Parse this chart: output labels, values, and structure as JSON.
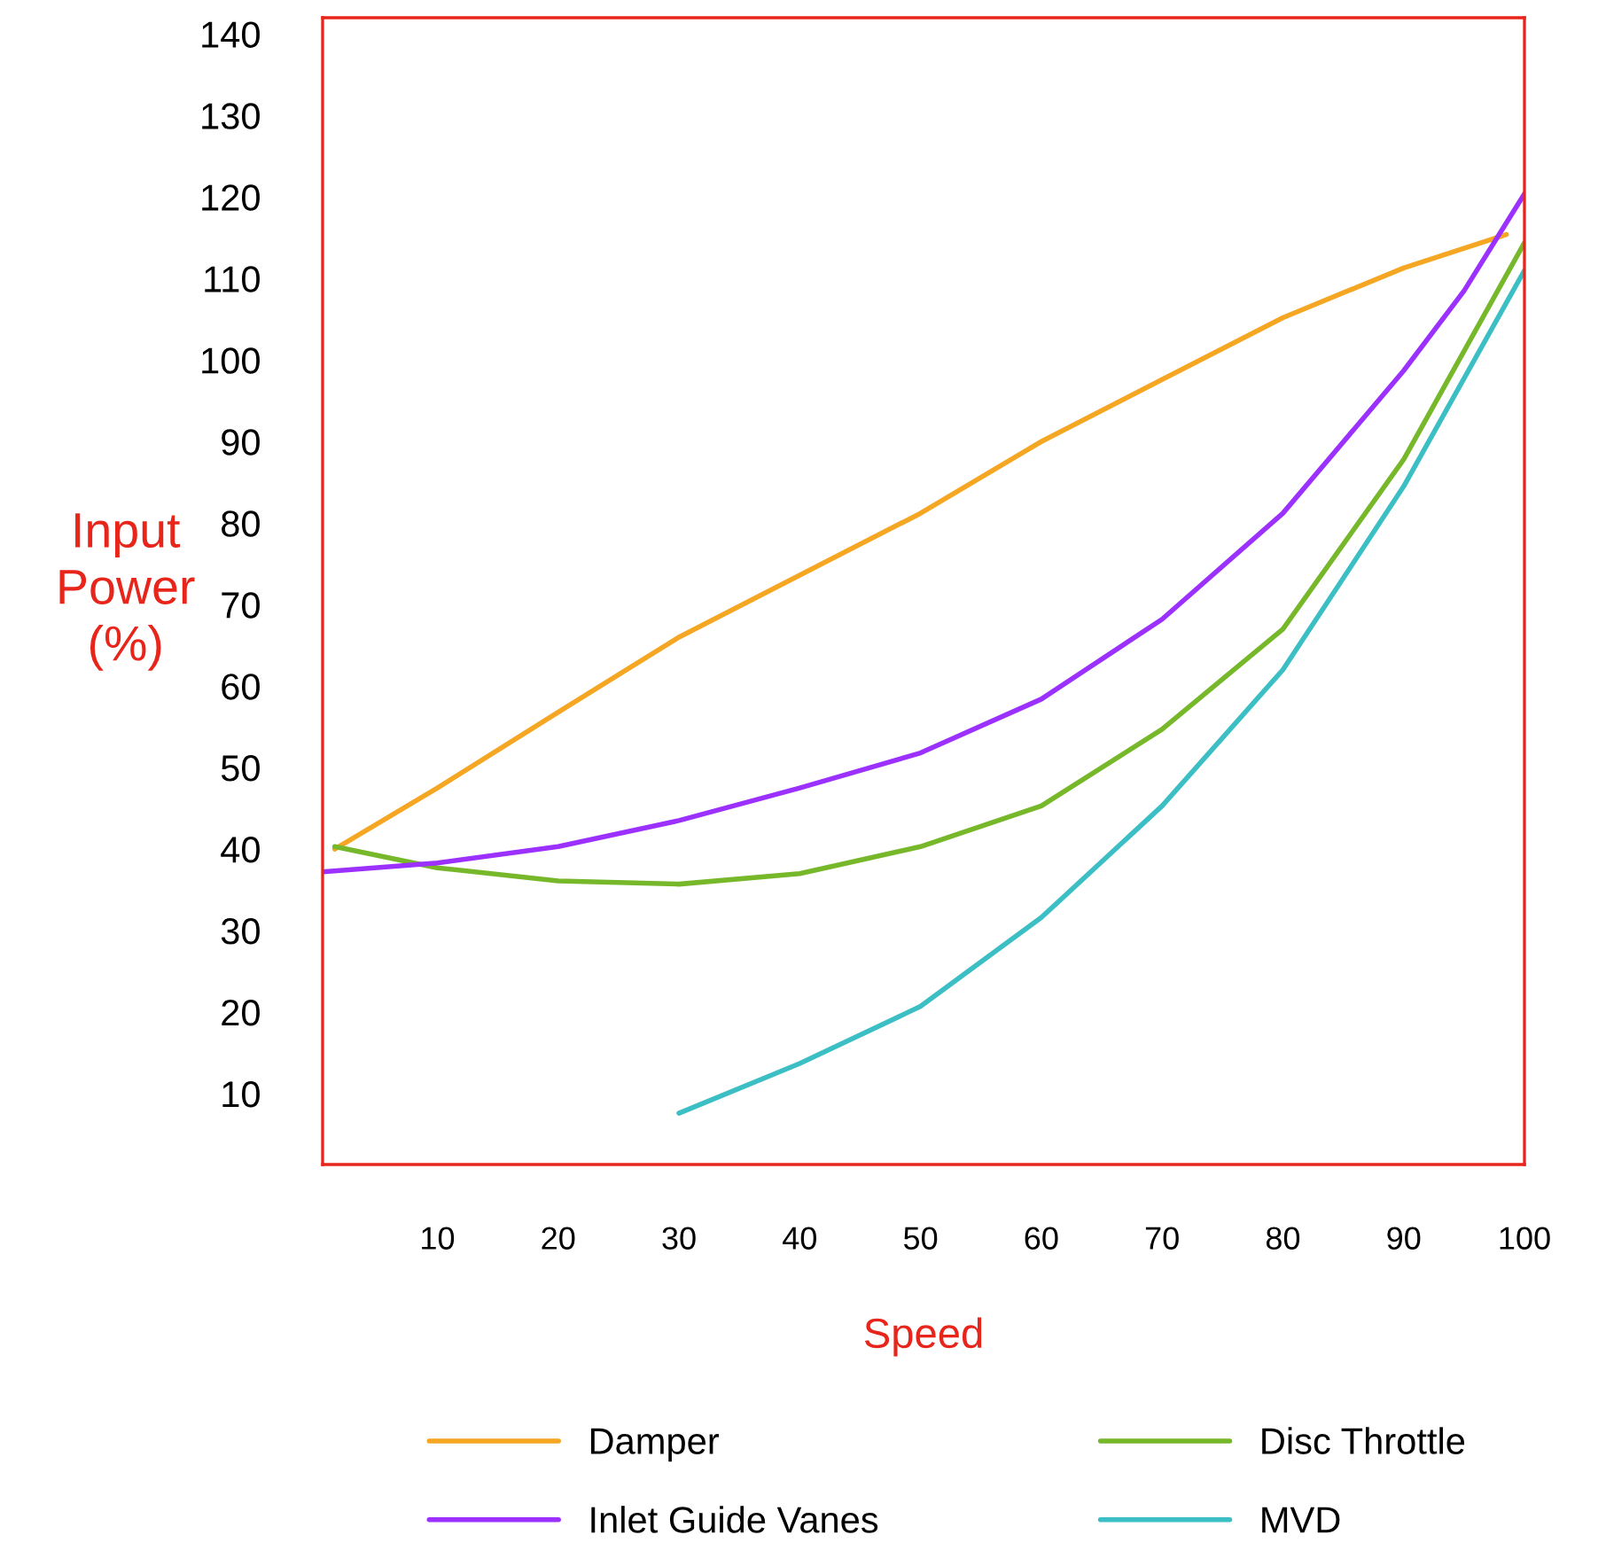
{
  "chart_data": {
    "type": "line",
    "xlabel": "Speed",
    "ylabel": "Input Power (%)",
    "xlim": [
      0.5,
      100
    ],
    "ylim": [
      1.3,
      142
    ],
    "xticks": [
      10,
      20,
      30,
      40,
      50,
      60,
      70,
      80,
      90,
      100
    ],
    "yticks": [
      10,
      20,
      30,
      40,
      50,
      60,
      70,
      80,
      90,
      100,
      110,
      120,
      130,
      140
    ],
    "grid": false,
    "legend": "bottom",
    "marker": "none",
    "line_style": "solid",
    "series": [
      {
        "name": "Damper",
        "color": "#f5a623",
        "x": [
          1.5,
          10,
          20,
          30,
          40,
          50,
          60,
          70,
          80,
          90,
          98.5
        ],
        "values": [
          40,
          47.5,
          56.8,
          66,
          73.6,
          81.2,
          90,
          97.6,
          105.2,
          111.3,
          115.4
        ]
      },
      {
        "name": "Disc Throttle",
        "color": "#76b82a",
        "x": [
          1.5,
          10,
          20,
          30,
          40,
          50,
          60,
          70,
          80,
          90,
          100
        ],
        "values": [
          40.3,
          37.7,
          36.1,
          35.7,
          37,
          40.3,
          45.3,
          54.7,
          67,
          87.8,
          114.4
        ]
      },
      {
        "name": "Inlet Guide Vanes",
        "color": "#9b30ff",
        "x": [
          0.5,
          10,
          20,
          30,
          40,
          50,
          60,
          70,
          80,
          90,
          95,
          100
        ],
        "values": [
          37.2,
          38.3,
          40.3,
          43.5,
          47.5,
          51.8,
          58.4,
          68.2,
          81.2,
          98.7,
          108.5,
          120.4
        ]
      },
      {
        "name": "MVD",
        "color": "#3bbfc4",
        "x": [
          30,
          40,
          50,
          60,
          70,
          80,
          90,
          100
        ],
        "values": [
          7.6,
          13.7,
          20.7,
          31.6,
          45.3,
          62,
          84.5,
          111
        ]
      }
    ]
  }
}
